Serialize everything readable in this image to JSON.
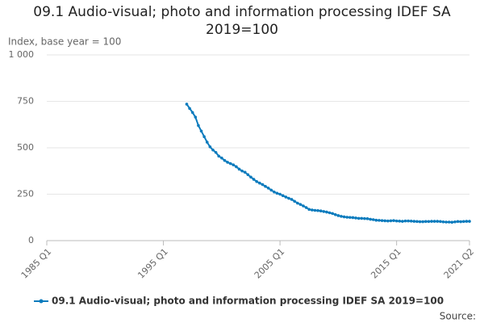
{
  "chart_data": {
    "type": "line",
    "title": "09.1 Audio-visual; photo and information processing IDEF SA 2019=100",
    "y_label": "Index, base year = 100",
    "source": "Source:",
    "x": [
      1997,
      1997.25,
      1997.5,
      1997.75,
      1998,
      1998.25,
      1998.5,
      1998.75,
      1999,
      1999.25,
      1999.5,
      1999.75,
      2000,
      2000.25,
      2000.5,
      2000.75,
      2001,
      2001.25,
      2001.5,
      2001.75,
      2002,
      2002.25,
      2002.5,
      2002.75,
      2003,
      2003.25,
      2003.5,
      2003.75,
      2004,
      2004.25,
      2004.5,
      2004.75,
      2005,
      2005.25,
      2005.5,
      2005.75,
      2006,
      2006.25,
      2006.5,
      2006.75,
      2007,
      2007.25,
      2007.5,
      2007.75,
      2008,
      2008.25,
      2008.5,
      2008.75,
      2009,
      2009.25,
      2009.5,
      2009.75,
      2010,
      2010.25,
      2010.5,
      2010.75,
      2011,
      2011.25,
      2011.5,
      2011.75,
      2012,
      2012.25,
      2012.5,
      2012.75,
      2013,
      2013.25,
      2013.5,
      2013.75,
      2014,
      2014.25,
      2014.5,
      2014.75,
      2015,
      2015.25,
      2015.5,
      2015.75,
      2016,
      2016.25,
      2016.5,
      2016.75,
      2017,
      2017.25,
      2017.5,
      2017.75,
      2018,
      2018.25,
      2018.5,
      2018.75,
      2019,
      2019.25,
      2019.5,
      2019.75,
      2020,
      2020.25,
      2020.5,
      2020.75,
      2021,
      2021.25
    ],
    "series": [
      {
        "name": "09.1 Audio-visual; photo and information processing IDEF SA 2019=100",
        "color": "#0b7bbd",
        "values": [
          735,
          712,
          690,
          665,
          620,
          590,
          560,
          530,
          505,
          488,
          475,
          455,
          445,
          432,
          422,
          415,
          408,
          398,
          385,
          375,
          368,
          355,
          342,
          330,
          318,
          310,
          302,
          292,
          283,
          272,
          262,
          255,
          250,
          242,
          235,
          228,
          222,
          212,
          202,
          195,
          187,
          178,
          168,
          165,
          163,
          162,
          160,
          157,
          154,
          150,
          146,
          140,
          135,
          131,
          128,
          126,
          125,
          124,
          122,
          120,
          120,
          119,
          118,
          115,
          113,
          110,
          109,
          108,
          107,
          106,
          107,
          108,
          106,
          105,
          104,
          106,
          106,
          105,
          104,
          103,
          102,
          102,
          103,
          103,
          104,
          104,
          104,
          103,
          101,
          100,
          100,
          99,
          101,
          103,
          102,
          103,
          104,
          104
        ]
      }
    ],
    "xlim": [
      1985,
      2021.25
    ],
    "xticks": [
      {
        "value": 1985,
        "label": "1985 Q1"
      },
      {
        "value": 1995,
        "label": "1995 Q1"
      },
      {
        "value": 2005,
        "label": "2005 Q1"
      },
      {
        "value": 2015,
        "label": "2015 Q1"
      },
      {
        "value": 2021.25,
        "label": "2021 Q2"
      }
    ],
    "ylim": [
      0,
      1000
    ],
    "yticks": [
      0,
      250,
      500,
      750,
      {
        "value": 1000,
        "label": "1 000"
      }
    ],
    "grid": true
  }
}
